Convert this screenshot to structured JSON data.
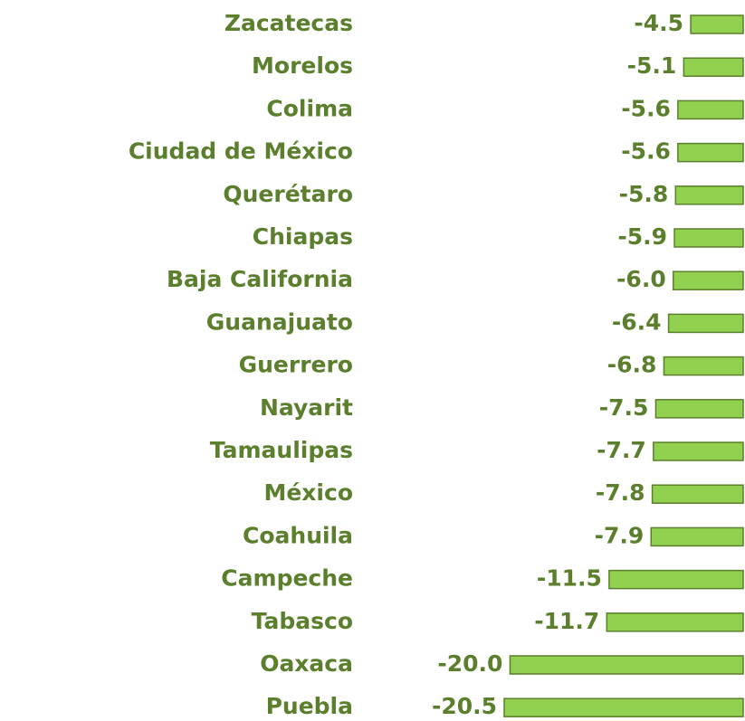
{
  "chart_data": {
    "type": "bar",
    "orientation": "horizontal",
    "color": "#92d050",
    "categories": [
      "Zacatecas",
      "Morelos",
      "Colima",
      "Ciudad de México",
      "Querétaro",
      "Chiapas",
      "Baja California",
      "Guanajuato",
      "Guerrero",
      "Nayarit",
      "Tamaulipas",
      "México",
      "Coahuila",
      "Campeche",
      "Tabasco",
      "Oaxaca",
      "Puebla"
    ],
    "values": [
      -4.5,
      -5.1,
      -5.6,
      -5.6,
      -5.8,
      -5.9,
      -6.0,
      -6.4,
      -6.8,
      -7.5,
      -7.7,
      -7.8,
      -7.9,
      -11.5,
      -11.7,
      -20.0,
      -20.5
    ],
    "value_labels": [
      "-4.5",
      "-5.1",
      "-5.6",
      "-5.6",
      "-5.8",
      "-5.9",
      "-6.0",
      "-6.4",
      "-6.8",
      "-7.5",
      "-7.7",
      "-7.8",
      "-7.9",
      "-11.5",
      "-11.7",
      "-20.0",
      "-20.5"
    ]
  }
}
